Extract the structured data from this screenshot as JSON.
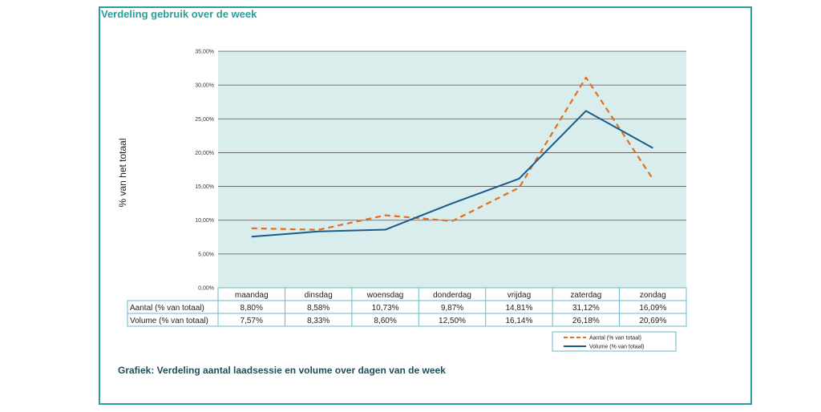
{
  "header": {
    "title": "Verdeling gebruik over de week"
  },
  "caption": "Grafiek: Verdeling aantal laadsessie en volume over dagen van de week",
  "chart_data": {
    "type": "line",
    "title": "",
    "xlabel": "",
    "ylabel": "% van het totaal",
    "ylim": [
      0,
      35
    ],
    "y_ticks": [
      "0,00%",
      "5,00%",
      "10,00%",
      "15,00%",
      "20,00%",
      "25,00%",
      "30,00%",
      "35,00%"
    ],
    "grid": true,
    "legend": "bottom-right",
    "categories": [
      "maandag",
      "dinsdag",
      "woensdag",
      "donderdag",
      "vrijdag",
      "zaterdag",
      "zondag"
    ],
    "series": [
      {
        "name": "Aantal (% van totaal)",
        "table_label": "Aantal (% van totaal)",
        "color": "#e07020",
        "dash": "dashed",
        "values": [
          8.8,
          8.58,
          10.73,
          9.87,
          14.81,
          31.12,
          16.09
        ],
        "labels": [
          "8,80%",
          "8,58%",
          "10,73%",
          "9,87%",
          "14,81%",
          "31,12%",
          "16,09%"
        ]
      },
      {
        "name": "Volume (% van totaal)",
        "table_label": "Volume (% van totaal)",
        "color": "#1a5a8a",
        "dash": "solid",
        "values": [
          7.57,
          8.33,
          8.6,
          12.5,
          16.14,
          26.18,
          20.69
        ],
        "labels": [
          "7,57%",
          "8,33%",
          "8,60%",
          "12,50%",
          "16,14%",
          "26,18%",
          "20,69%"
        ]
      }
    ],
    "plot_background": "#d9eded",
    "table_border_color": "#6ab8c8"
  }
}
